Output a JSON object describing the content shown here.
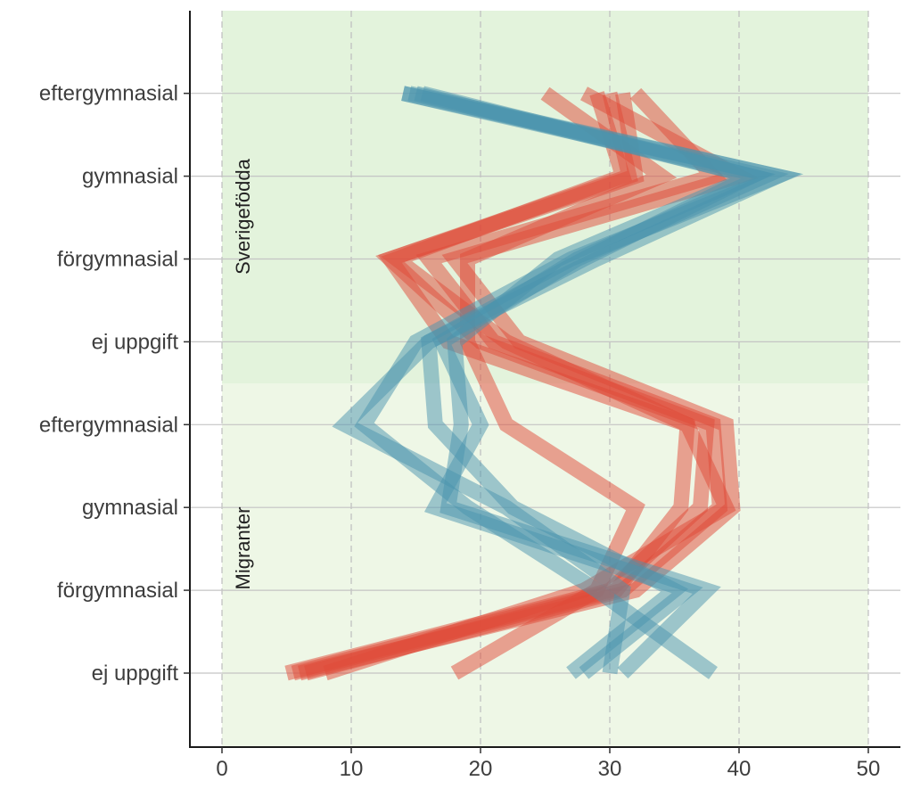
{
  "chart_data": {
    "type": "line",
    "orientation": "horizontal-categories-on-y",
    "xlim": [
      -2.5,
      53
    ],
    "x_ticks": [
      0,
      10,
      20,
      30,
      40,
      50
    ],
    "x_tick_labels": [
      "0",
      "10",
      "20",
      "30",
      "40",
      "50"
    ],
    "grid": {
      "vertical": "dashed",
      "horizontal": "solid"
    },
    "legend": "none",
    "categories": [
      "ej uppgift",
      "förgymnasial",
      "gymnasial",
      "eftergymnasial",
      "ej uppgift",
      "förgymnasial",
      "gymnasial",
      "eftergymnasial"
    ],
    "panels": [
      {
        "label": "Migranter",
        "levels": [
          1,
          4
        ],
        "color": "#eef7e6"
      },
      {
        "label": "Sverigefödda",
        "levels": [
          5,
          8
        ],
        "color": "#e3f3dc"
      }
    ],
    "colors": {
      "red": "#e04a38",
      "blue": "#4a93ae"
    },
    "series": [
      {
        "color": "red",
        "values": [
          8,
          28,
          39,
          36,
          17.5,
          13,
          31.5,
          30
        ]
      },
      {
        "color": "red",
        "values": [
          18,
          29,
          32,
          22,
          19,
          19,
          34,
          25
        ]
      },
      {
        "color": "red",
        "values": [
          6,
          32,
          39.5,
          39,
          23,
          18,
          40,
          28
        ]
      },
      {
        "color": "red",
        "values": [
          5,
          30,
          37,
          37.5,
          20,
          13,
          32,
          31
        ]
      },
      {
        "color": "red",
        "values": [
          5.5,
          30.5,
          35.5,
          36,
          22,
          13.5,
          31,
          29
        ]
      },
      {
        "color": "red",
        "values": [
          6.5,
          31,
          38.5,
          38,
          21,
          16,
          38,
          32
        ]
      },
      {
        "color": "blue",
        "values": [
          38,
          29,
          19,
          11,
          15,
          27,
          43,
          14
        ]
      },
      {
        "color": "blue",
        "values": [
          31,
          37.5,
          17.5,
          18.5,
          18,
          26,
          41,
          15
        ]
      },
      {
        "color": "blue",
        "values": [
          30,
          31,
          22,
          9.5,
          16,
          29,
          43,
          14.5
        ]
      },
      {
        "color": "blue",
        "values": [
          27,
          35,
          22.5,
          16.5,
          16,
          28,
          41,
          15.5
        ]
      },
      {
        "color": "blue",
        "values": [
          28,
          36,
          16.5,
          20,
          17,
          27.5,
          42,
          14
        ]
      }
    ]
  }
}
